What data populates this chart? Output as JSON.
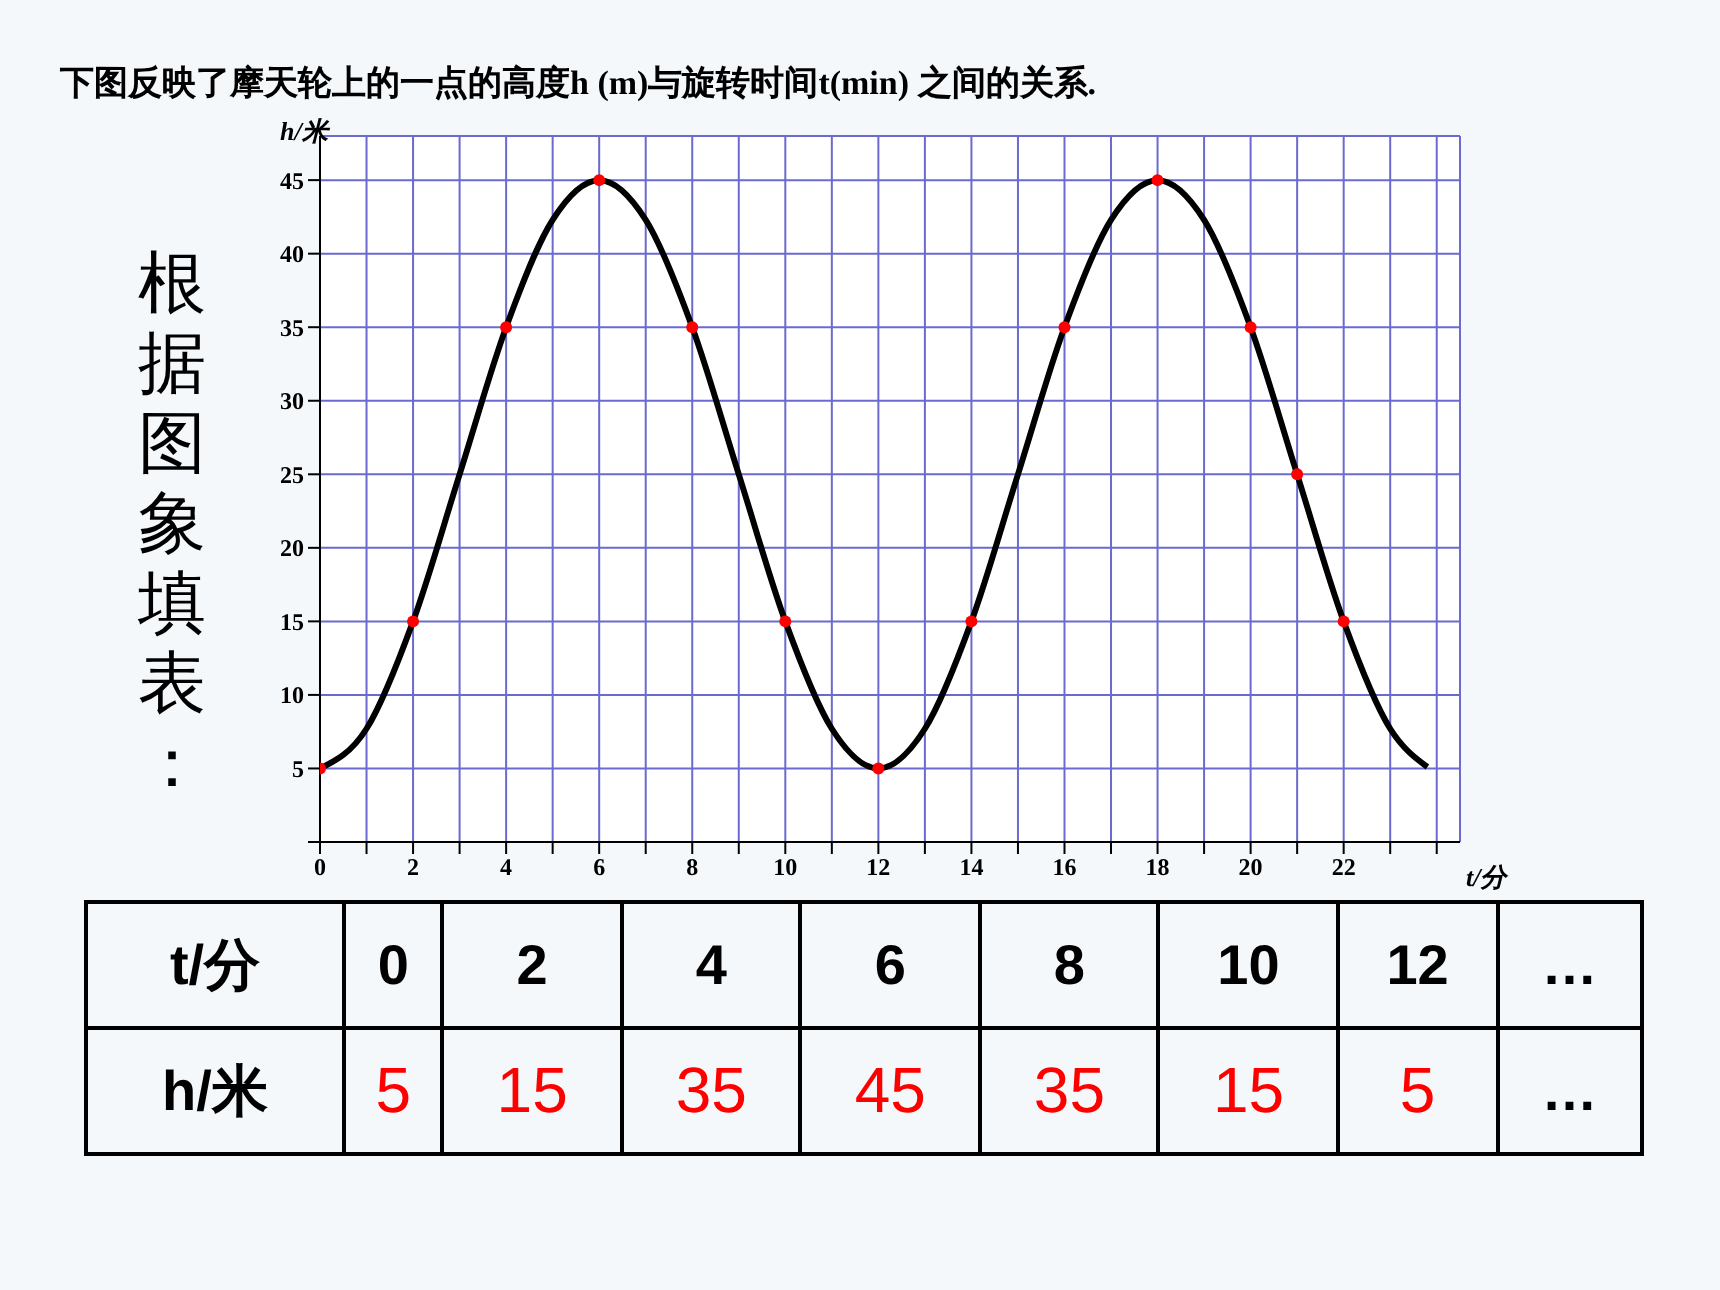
{
  "chart_data": [
    {
      "type": "line",
      "title": "下图反映了摩天轮上的一点的高度h (m)与旋转时间t(min) 之间的关系.",
      "xlabel": "t/分",
      "ylabel": "h/米",
      "xlim": [
        0,
        24.5
      ],
      "ylim": [
        0,
        48
      ],
      "xticks": [
        0,
        {
          "value": 1,
          "label": null
        },
        2,
        {
          "value": 3,
          "label": null
        },
        4,
        {
          "value": 5,
          "label": null
        },
        6,
        {
          "value": 7,
          "label": null
        },
        8,
        {
          "value": 9,
          "label": null
        },
        10,
        {
          "value": 11,
          "label": null
        },
        12,
        {
          "value": 13,
          "label": null
        },
        14,
        {
          "value": 15,
          "label": null
        },
        16,
        {
          "value": 17,
          "label": null
        },
        18,
        {
          "value": 19,
          "label": null
        },
        20,
        {
          "value": 21,
          "label": null
        },
        22,
        {
          "value": 23,
          "label": null
        },
        {
          "value": 24,
          "label": null
        }
      ],
      "yticks": [
        {
          "value": 0,
          "label": null
        },
        5,
        10,
        15,
        20,
        25,
        30,
        35,
        40,
        45
      ],
      "grid": true,
      "annotations": [
        "根据图象填表："
      ],
      "series": [
        {
          "type": "line",
          "color": "#000000",
          "x": [
            0,
            1,
            2,
            3,
            4,
            5,
            6,
            7,
            8,
            9,
            10,
            11,
            12,
            13,
            14,
            15,
            16,
            17,
            18,
            19,
            20,
            21,
            22,
            23,
            23.8
          ],
          "values": [
            5,
            7.7,
            15,
            25,
            35,
            42.3,
            45,
            42.3,
            35,
            25,
            15,
            7.7,
            5,
            7.7,
            15,
            25,
            35,
            42.3,
            45,
            42.3,
            35,
            25,
            15,
            7.7,
            5.1
          ]
        },
        {
          "type": "scatter",
          "color": "#ff0000",
          "marker": "circle",
          "x": [
            0,
            2,
            4,
            6,
            8,
            10,
            12,
            14,
            16,
            18,
            20,
            21,
            22
          ],
          "values": [
            5,
            15,
            35,
            45,
            35,
            15,
            5,
            15,
            35,
            45,
            35,
            25,
            15
          ]
        }
      ]
    },
    {
      "type": "other",
      "xlabel": "t/分",
      "ylabel": "h/米",
      "categories": [
        "0",
        "2",
        "4",
        "6",
        "8",
        "10",
        "12",
        "…"
      ],
      "series": [
        {
          "color": "#ff0000",
          "values": [
            5,
            15,
            35,
            45,
            35,
            15,
            5,
            null
          ],
          "value_labels": [
            "5",
            "15",
            "35",
            "45",
            "35",
            "15",
            "5",
            "…"
          ]
        }
      ]
    }
  ]
}
